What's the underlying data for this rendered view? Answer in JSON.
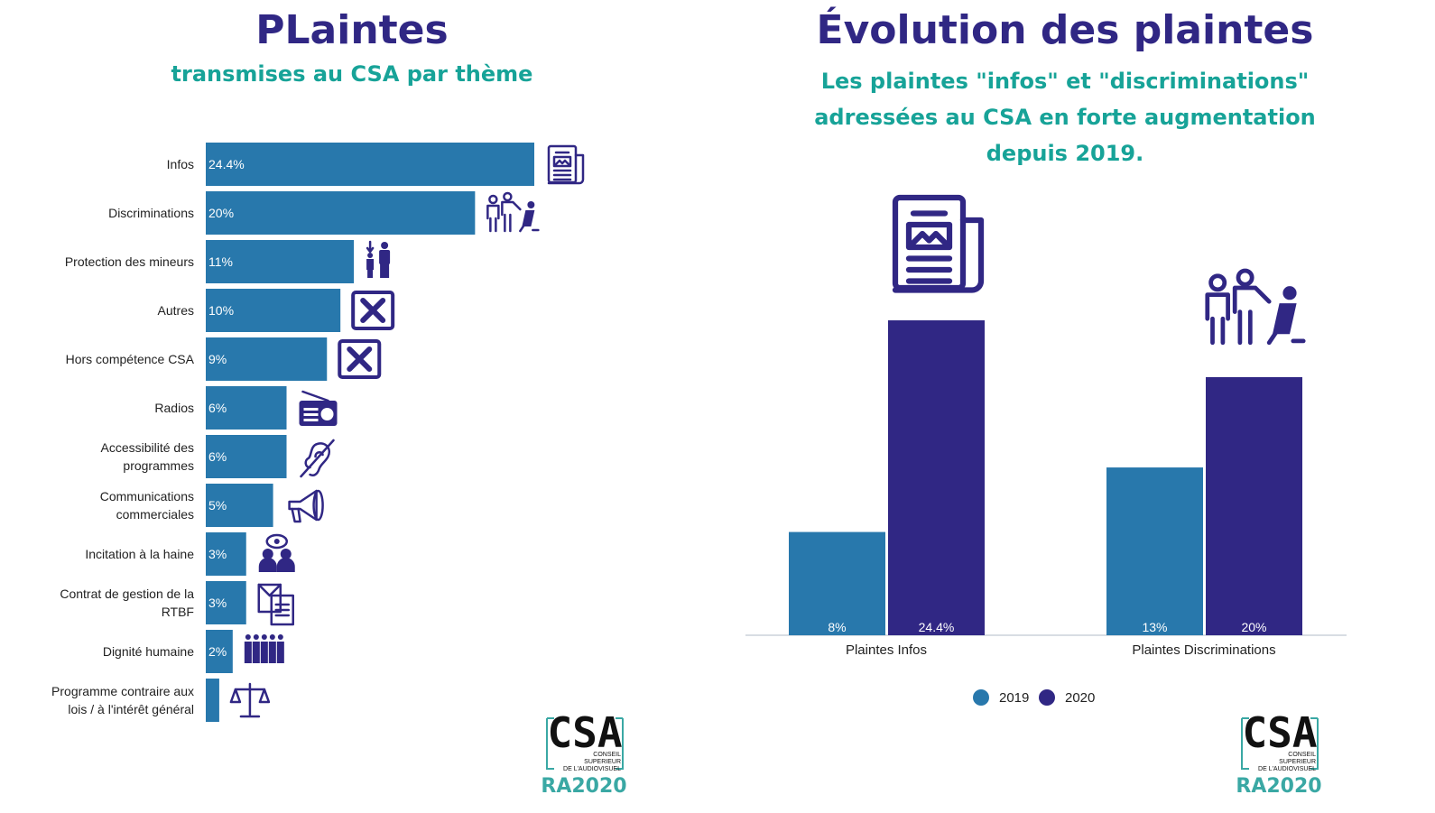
{
  "left": {
    "title": "PLaintes",
    "subtitle": "transmises au CSA par thème"
  },
  "right": {
    "title": "Évolution des plaintes",
    "subtitle_line1": "Les plaintes \"infos\" et \"discriminations\"",
    "subtitle_line2": "adressées au CSA en forte augmentation",
    "subtitle_line3": "depuis 2019."
  },
  "logo": {
    "csa": "CSA",
    "line1": "CONSEIL",
    "line2": "SUPERIEUR",
    "line3": "DE L'AUDIOVISUEL",
    "ra": "RA2020"
  },
  "colors": {
    "bar2019": "#2878ac",
    "bar2020": "#302784",
    "title": "#302784",
    "subtitle": "#17a398"
  },
  "chart_data": [
    {
      "type": "bar",
      "orientation": "horizontal",
      "categories": [
        "Infos",
        "Discriminations",
        "Protection des mineurs",
        "Autres",
        "Hors compétence CSA",
        "Radios",
        "Accessibilité des programmes",
        "Communications commerciales",
        "Incitation à la haine",
        "Contrat de gestion de la RTBF",
        "Dignité humaine",
        "Programme contraire aux lois / à l'intérêt général"
      ],
      "category_lines": [
        [
          "Infos"
        ],
        [
          "Discriminations"
        ],
        [
          "Protection des mineurs"
        ],
        [
          "Autres"
        ],
        [
          "Hors compétence CSA"
        ],
        [
          "Radios"
        ],
        [
          "Accessibilité des",
          "programmes"
        ],
        [
          "Communications",
          "commerciales"
        ],
        [
          "Incitation à la haine"
        ],
        [
          "Contrat de gestion de la",
          "RTBF"
        ],
        [
          "Dignité humaine"
        ],
        [
          "Programme contraire aux",
          "lois / à l'intérêt général"
        ]
      ],
      "values": [
        24.4,
        20,
        11,
        10,
        9,
        6,
        6,
        5,
        3,
        3,
        2,
        1
      ],
      "labels": [
        "24.4%",
        "20%",
        "11%",
        "10%",
        "9%",
        "6%",
        "6%",
        "5%",
        "3%",
        "3%",
        "2%",
        ""
      ],
      "icons": [
        "newspaper-icon",
        "people-discrimination-icon",
        "child-adult-icon",
        "cross-box-icon",
        "cross-box-icon",
        "radio-icon",
        "hearing-impaired-icon",
        "megaphone-icon",
        "hate-speech-icon",
        "documents-icon",
        "crowd-icon",
        "scales-icon"
      ],
      "color": "#2878ac"
    },
    {
      "type": "bar",
      "categories": [
        "Plaintes Infos",
        "Plaintes Discriminations"
      ],
      "series": [
        {
          "name": "2019",
          "values": [
            8,
            13
          ],
          "labels": [
            "8%",
            "13%"
          ],
          "color": "#2878ac"
        },
        {
          "name": "2020",
          "values": [
            24.4,
            20
          ],
          "labels": [
            "24.4%",
            "20%"
          ],
          "color": "#302784"
        }
      ],
      "legend_position": "bottom",
      "icons": [
        "newspaper-icon",
        "people-discrimination-icon"
      ]
    }
  ]
}
